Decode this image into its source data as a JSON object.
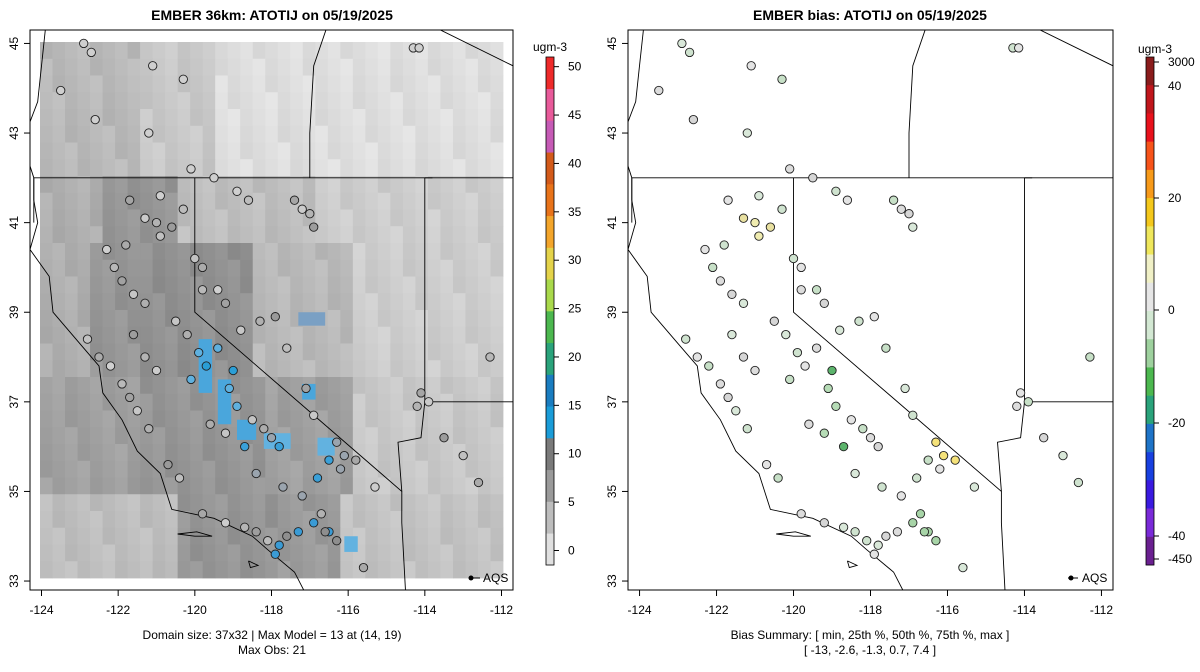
{
  "left_panel": {
    "title": "EMBER 36km: ATOTIJ on 05/19/2025",
    "colorbar_unit": "ugm-3",
    "colorbar_ticks": [
      0,
      5,
      10,
      15,
      20,
      25,
      30,
      35,
      40,
      45,
      50
    ],
    "colorbar_colors": [
      "#e0e0e0",
      "#bdbdbd",
      "#9a9a9a",
      "#7a7a7a",
      "#1a9cd8",
      "#1a7dc0",
      "#2aa37b",
      "#4cb84f",
      "#a9d94b",
      "#e4d34a",
      "#f3a52b",
      "#e8731a",
      "#d35a1a",
      "#c65bb6",
      "#e85a9a",
      "#ee2a2a"
    ],
    "footer_line1": "Domain size: 37x32 | Max Model = 13 at (14, 19)",
    "footer_line2": "Max Obs: 21",
    "aqs_label": "AQS"
  },
  "right_panel": {
    "title": "EMBER bias: ATOTIJ on 05/19/2025",
    "colorbar_unit": "ugm-3",
    "colorbar_ticks": [
      "3000",
      "40",
      "20",
      "0",
      "-20",
      "-40",
      "-450"
    ],
    "colorbar_colors": [
      "#8a1c1c",
      "#c0161c",
      "#e8111c",
      "#f7531a",
      "#f79a1a",
      "#f4c81c",
      "#efe75c",
      "#f0f0c6",
      "#e6e6e6",
      "#d3e8d3",
      "#9ed19e",
      "#4cb84f",
      "#2aa37b",
      "#1e74c8",
      "#1840e0",
      "#3a1ae0",
      "#7a2ad8",
      "#6a2090"
    ],
    "footer_line1": "Bias Summary: [ min, 25th %, 50th %, 75th %, max ]",
    "footer_line2": "[ -13,   -2.6,   -1.3,   0.7,   7.4 ]",
    "aqs_label": "AQS"
  },
  "axes": {
    "x_ticks": [
      "-124",
      "-122",
      "-120",
      "-118",
      "-116",
      "-114",
      "-112"
    ],
    "y_ticks": [
      "33",
      "35",
      "37",
      "39",
      "41",
      "43",
      "45"
    ]
  },
  "map_extent": {
    "lon_min": -124.3,
    "lon_max": -111.7,
    "lat_min": 32.8,
    "lat_max": 45.3
  }
}
